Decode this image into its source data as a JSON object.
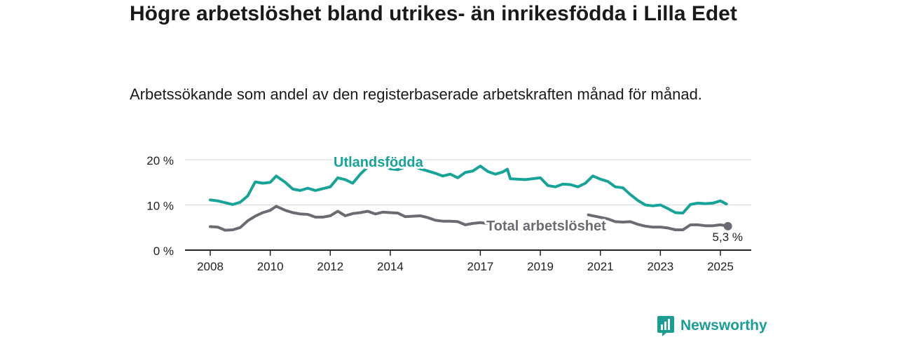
{
  "title": "Högre arbetslöshet bland utrikes- än inrikesfödda i Lilla Edet",
  "subtitle": "Arbetssökande som andel av den registerbaserade arbetskraften månad för månad.",
  "brand": "Newsworthy",
  "colors": {
    "foreign_born": "#17a398",
    "total": "#6b6b73",
    "grid": "#d9d9d9",
    "axis": "#222222"
  },
  "chart_data": {
    "type": "line",
    "title": "Högre arbetslöshet bland utrikes- än inrikesfödda i Lilla Edet",
    "subtitle": "Arbetssökande som andel av den registerbaserade arbetskraften månad för månad.",
    "ylim": [
      0,
      20
    ],
    "yticks": [
      {
        "value": 0,
        "label": "0 %"
      },
      {
        "value": 10,
        "label": "10 %"
      },
      {
        "value": 20,
        "label": "20 %"
      }
    ],
    "xlim": [
      2007.5,
      2026.0
    ],
    "xticks": [
      {
        "value": 2008,
        "label": "2008"
      },
      {
        "value": 2010,
        "label": "2010"
      },
      {
        "value": 2012,
        "label": "2012"
      },
      {
        "value": 2014,
        "label": "2014"
      },
      {
        "value": 2017,
        "label": "2017"
      },
      {
        "value": 2019,
        "label": "2019"
      },
      {
        "value": 2021,
        "label": "2021"
      },
      {
        "value": 2023,
        "label": "2023"
      },
      {
        "value": 2025,
        "label": "2025"
      }
    ],
    "grid": true,
    "series": [
      {
        "name": "Utlandsfödda",
        "color": "#17a398",
        "points": [
          [
            2008.0,
            11.1
          ],
          [
            2008.25,
            10.9
          ],
          [
            2008.5,
            10.5
          ],
          [
            2008.75,
            10.1
          ],
          [
            2009.0,
            10.6
          ],
          [
            2009.25,
            12.0
          ],
          [
            2009.5,
            15.1
          ],
          [
            2009.75,
            14.8
          ],
          [
            2010.0,
            15.0
          ],
          [
            2010.2,
            16.4
          ],
          [
            2010.5,
            15.0
          ],
          [
            2010.75,
            13.5
          ],
          [
            2011.0,
            13.2
          ],
          [
            2011.25,
            13.7
          ],
          [
            2011.5,
            13.2
          ],
          [
            2011.75,
            13.6
          ],
          [
            2012.0,
            14.0
          ],
          [
            2012.25,
            16.0
          ],
          [
            2012.5,
            15.6
          ],
          [
            2012.75,
            14.8
          ],
          [
            2013.0,
            16.8
          ],
          [
            2013.25,
            18.4
          ],
          [
            2013.5,
            19.6
          ],
          [
            2013.75,
            18.8
          ],
          [
            2014.0,
            18.0
          ],
          [
            2014.25,
            17.8
          ],
          [
            2014.5,
            18.4
          ],
          [
            2014.75,
            18.6
          ],
          [
            2015.0,
            18.0
          ],
          [
            2015.25,
            17.5
          ],
          [
            2015.5,
            17.0
          ],
          [
            2015.75,
            16.4
          ],
          [
            2016.0,
            16.8
          ],
          [
            2016.25,
            16.0
          ],
          [
            2016.5,
            17.2
          ],
          [
            2016.75,
            17.5
          ],
          [
            2017.0,
            18.6
          ],
          [
            2017.25,
            17.4
          ],
          [
            2017.5,
            16.8
          ],
          [
            2017.75,
            17.3
          ],
          [
            2017.9,
            17.9
          ],
          [
            2018.0,
            15.8
          ],
          [
            2018.5,
            15.6
          ],
          [
            2019.0,
            16.0
          ],
          [
            2019.25,
            14.3
          ],
          [
            2019.5,
            14.0
          ],
          [
            2019.75,
            14.6
          ],
          [
            2020.0,
            14.5
          ],
          [
            2020.25,
            14.0
          ],
          [
            2020.5,
            14.8
          ],
          [
            2020.75,
            16.4
          ],
          [
            2021.0,
            15.7
          ],
          [
            2021.25,
            15.2
          ],
          [
            2021.5,
            14.0
          ],
          [
            2021.75,
            13.8
          ],
          [
            2022.0,
            12.3
          ],
          [
            2022.25,
            11.0
          ],
          [
            2022.5,
            10.0
          ],
          [
            2022.75,
            9.8
          ],
          [
            2023.0,
            10.0
          ],
          [
            2023.25,
            9.2
          ],
          [
            2023.5,
            8.3
          ],
          [
            2023.75,
            8.2
          ],
          [
            2024.0,
            10.1
          ],
          [
            2024.25,
            10.4
          ],
          [
            2024.5,
            10.3
          ],
          [
            2024.75,
            10.4
          ],
          [
            2025.0,
            10.9
          ],
          [
            2025.2,
            10.2
          ]
        ]
      },
      {
        "name": "Total arbetslöshet",
        "color": "#6b6b73",
        "points": [
          [
            2008.0,
            5.2
          ],
          [
            2008.25,
            5.1
          ],
          [
            2008.5,
            4.4
          ],
          [
            2008.75,
            4.5
          ],
          [
            2009.0,
            5.0
          ],
          [
            2009.25,
            6.5
          ],
          [
            2009.5,
            7.5
          ],
          [
            2009.75,
            8.3
          ],
          [
            2010.0,
            8.8
          ],
          [
            2010.2,
            9.7
          ],
          [
            2010.5,
            8.8
          ],
          [
            2010.75,
            8.3
          ],
          [
            2011.0,
            8.0
          ],
          [
            2011.25,
            7.9
          ],
          [
            2011.5,
            7.3
          ],
          [
            2011.75,
            7.3
          ],
          [
            2012.0,
            7.6
          ],
          [
            2012.25,
            8.6
          ],
          [
            2012.5,
            7.6
          ],
          [
            2012.75,
            8.1
          ],
          [
            2013.0,
            8.3
          ],
          [
            2013.25,
            8.6
          ],
          [
            2013.5,
            8.0
          ],
          [
            2013.75,
            8.4
          ],
          [
            2014.0,
            8.3
          ],
          [
            2014.25,
            8.2
          ],
          [
            2014.5,
            7.4
          ],
          [
            2014.75,
            7.5
          ],
          [
            2015.0,
            7.6
          ],
          [
            2015.25,
            7.2
          ],
          [
            2015.5,
            6.6
          ],
          [
            2015.75,
            6.4
          ],
          [
            2016.0,
            6.4
          ],
          [
            2016.25,
            6.3
          ],
          [
            2016.5,
            5.6
          ],
          [
            2016.75,
            5.9
          ],
          [
            2017.0,
            6.1
          ],
          [
            2017.25,
            5.9
          ]
        ],
        "points_tail": [
          [
            2020.6,
            7.8
          ],
          [
            2020.9,
            7.4
          ],
          [
            2021.25,
            6.9
          ],
          [
            2021.5,
            6.3
          ],
          [
            2021.75,
            6.2
          ],
          [
            2022.0,
            6.3
          ],
          [
            2022.25,
            5.7
          ],
          [
            2022.5,
            5.3
          ],
          [
            2022.75,
            5.1
          ],
          [
            2023.0,
            5.1
          ],
          [
            2023.25,
            4.9
          ],
          [
            2023.5,
            4.5
          ],
          [
            2023.75,
            4.5
          ],
          [
            2024.0,
            5.6
          ],
          [
            2024.25,
            5.6
          ],
          [
            2024.5,
            5.4
          ],
          [
            2024.75,
            5.4
          ],
          [
            2025.0,
            5.6
          ],
          [
            2025.25,
            5.3
          ]
        ]
      }
    ],
    "annotations": [
      {
        "series": "Utlandsfödda",
        "text": "Utlandsfödda"
      },
      {
        "series": "Total arbetslöshet",
        "text": "Total arbetslöshet"
      },
      {
        "series": "Total arbetslöshet",
        "text": "5,3 %",
        "x": 2025.25,
        "y": 5.3
      }
    ]
  }
}
